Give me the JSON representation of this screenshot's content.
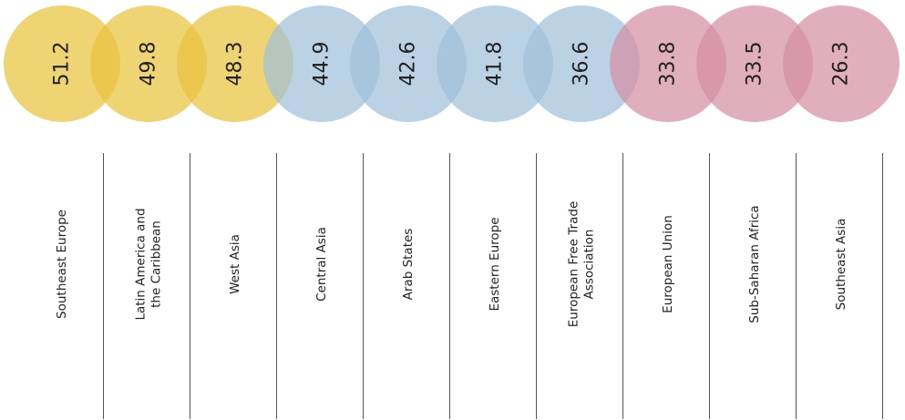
{
  "chart_data": {
    "type": "bubble",
    "categories": [
      [
        "Southeast Europe"
      ],
      [
        "Latin America and",
        "the Caribbean"
      ],
      [
        "West Asia"
      ],
      [
        "Central Asia"
      ],
      [
        "Arab States"
      ],
      [
        "Eastern Europe"
      ],
      [
        "European Free Trade",
        "Association"
      ],
      [
        "European Union"
      ],
      [
        "Sub-Saharan Africa"
      ],
      [
        "Southeast Asia"
      ]
    ],
    "values": [
      51.2,
      49.8,
      48.3,
      44.9,
      42.6,
      41.8,
      36.6,
      33.8,
      33.5,
      26.3
    ],
    "colors": [
      "#e9c43f",
      "#e9c43f",
      "#e9c43f",
      "#9fc0da",
      "#9fc0da",
      "#9fc0da",
      "#9fc0da",
      "#d48fa4",
      "#d48fa4",
      "#d48fa4"
    ]
  }
}
